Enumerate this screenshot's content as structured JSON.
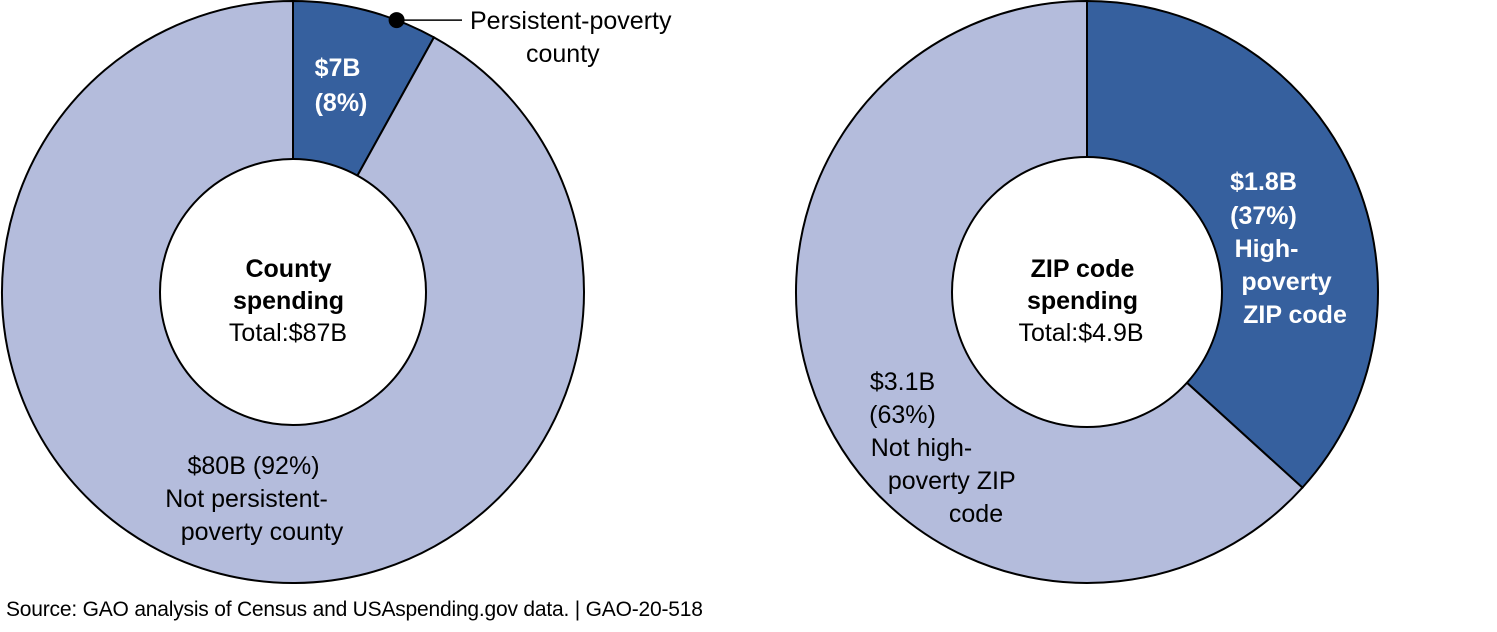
{
  "chart_data": [
    {
      "type": "pie",
      "variant": "donut",
      "title": "County spending",
      "total_label": "Total:$87B",
      "total_value": 87,
      "unit": "billion USD",
      "slices": [
        {
          "name": "Persistent-poverty county",
          "value": 7,
          "percent": 8,
          "color": "#36609e",
          "label_lines": [
            "$7B",
            "(8%)"
          ],
          "label_style": "bold-white",
          "callout_lines": [
            "Persistent-poverty",
            "county"
          ]
        },
        {
          "name": "Not persistent-poverty county",
          "value": 80,
          "percent": 92,
          "color": "#b4bcdc",
          "label_lines": [
            "$80B (92%)",
            "Not persistent-",
            "poverty county"
          ],
          "label_style": "regular-dark"
        }
      ]
    },
    {
      "type": "pie",
      "variant": "donut",
      "title": "ZIP code spending",
      "total_label": "Total:$4.9B",
      "total_value": 4.9,
      "unit": "billion USD",
      "slices": [
        {
          "name": "High-poverty ZIP code",
          "value": 1.8,
          "percent": 37,
          "color": "#36609e",
          "label_lines": [
            "$1.8B",
            "(37%)",
            "High-",
            "poverty",
            "ZIP code"
          ],
          "label_style": "bold-white"
        },
        {
          "name": "Not high-poverty ZIP code",
          "value": 3.1,
          "percent": 63,
          "color": "#b4bcdc",
          "label_lines": [
            "$3.1B",
            "(63%)",
            "Not high-",
            "poverty ZIP",
            "code"
          ],
          "label_style": "regular-dark"
        }
      ]
    }
  ],
  "center_titles": [
    [
      "County",
      "spending"
    ],
    [
      "ZIP code",
      "spending"
    ]
  ],
  "footer": {
    "source": "Source: GAO analysis of Census and USAspending.gov data.  |  GAO-20-518"
  }
}
